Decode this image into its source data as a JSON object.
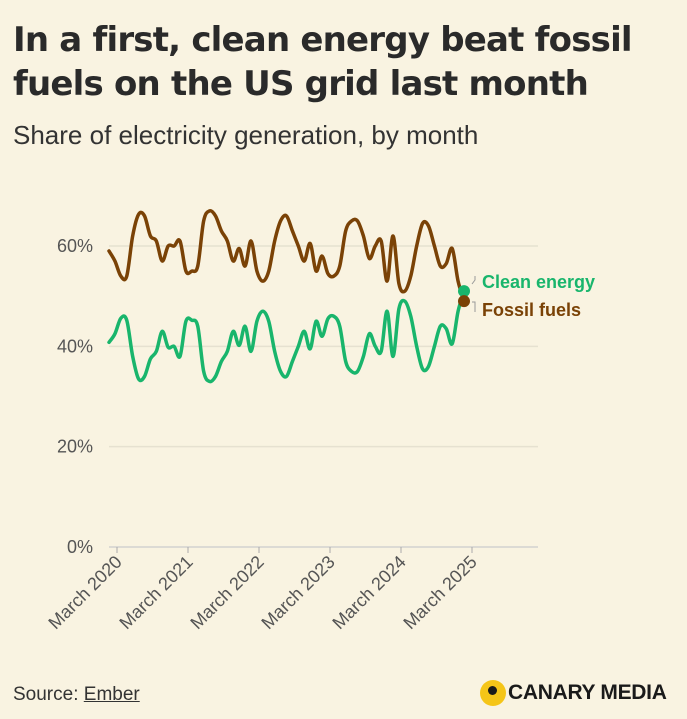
{
  "title": "In a first, clean energy beat fossil fuels on the US grid last month",
  "subtitle": "Share of electricity generation, by month",
  "source": {
    "prefix": "Source: ",
    "link_text": "Ember"
  },
  "logo": {
    "text": "CANARY MEDIA",
    "icon": "canary-dot-icon"
  },
  "chart_data": {
    "type": "line",
    "x_start": "2020-03",
    "x_end": "2025-04",
    "ylim": [
      0,
      70
    ],
    "y_ticks": [
      0,
      20,
      40,
      60
    ],
    "y_tick_labels": [
      "0%",
      "20%",
      "40%",
      "60%"
    ],
    "x_ticks": [
      "2020-03",
      "2021-03",
      "2022-03",
      "2023-03",
      "2024-03",
      "2025-03"
    ],
    "x_tick_labels": [
      "March 2020",
      "March 2021",
      "March 2022",
      "March 2023",
      "March 2024",
      "March 2025"
    ],
    "grid": true,
    "series": [
      {
        "name": "Clean energy",
        "color": "#19b56c",
        "values": [
          40.8,
          42.5,
          45.6,
          45.2,
          38,
          33.5,
          34,
          37.5,
          39,
          43,
          39.8,
          40,
          38,
          45,
          45.2,
          44,
          35,
          33,
          34,
          37,
          39,
          43,
          40.2,
          44,
          39,
          45,
          47,
          45,
          39,
          35,
          34,
          37,
          40,
          43,
          39.5,
          45,
          42,
          45.5,
          46,
          44,
          37,
          35,
          35,
          38,
          42.5,
          40,
          39,
          47,
          38,
          47.5,
          49,
          46,
          40,
          35.5,
          36,
          40,
          44,
          43.5,
          40.5,
          47,
          51
        ]
      },
      {
        "name": "Fossil fuels",
        "color": "#7a4206",
        "values": [
          59,
          57,
          54,
          54,
          62,
          66.3,
          66,
          62,
          61,
          57,
          60,
          60,
          61,
          55,
          55,
          56,
          65,
          67,
          66,
          63,
          61,
          57,
          59.5,
          56,
          61,
          55,
          53,
          55,
          61,
          65,
          66,
          63,
          60,
          57,
          60.5,
          55,
          58,
          54.5,
          54,
          56,
          63,
          65,
          65,
          62,
          57.5,
          60,
          61,
          53,
          62,
          52.5,
          51,
          54,
          60,
          64.5,
          64,
          60,
          56,
          56.5,
          59.5,
          53,
          49
        ]
      }
    ]
  }
}
